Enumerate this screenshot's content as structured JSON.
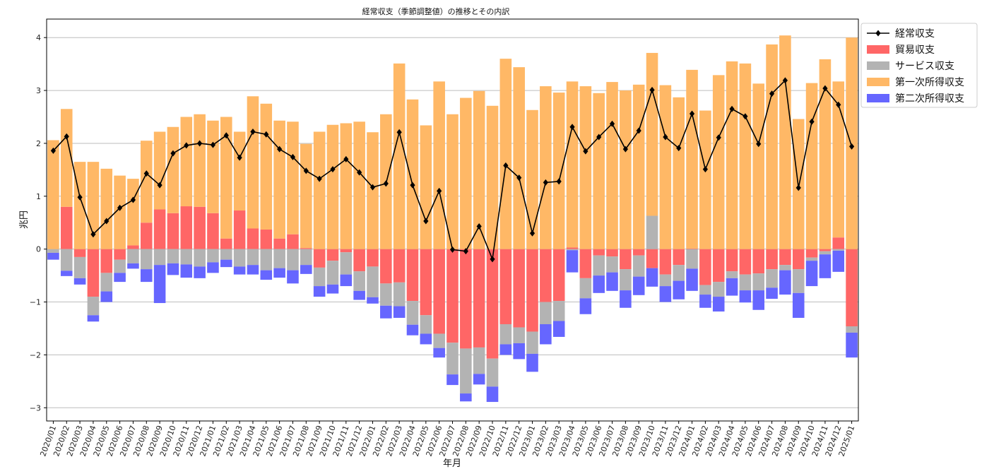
{
  "chart_data": {
    "type": "bar",
    "title": "経常収支（季節調整値）の推移とその内訳",
    "xlabel": "年月",
    "ylabel": "兆円",
    "ylim": [
      -3.25,
      4.35
    ],
    "yticks": [
      -3,
      -2,
      -1,
      0,
      1,
      2,
      3,
      4
    ],
    "ytick_labels": [
      "−3",
      "−2",
      "−1",
      "0",
      "1",
      "2",
      "3",
      "4"
    ],
    "grid": "horizontal",
    "legend_position": "top-right-outside",
    "stacked": true,
    "categories": [
      "2020/01",
      "2020/02",
      "2020/03",
      "2020/04",
      "2020/05",
      "2020/06",
      "2020/07",
      "2020/08",
      "2020/09",
      "2020/10",
      "2020/11",
      "2020/12",
      "2021/01",
      "2021/02",
      "2021/03",
      "2021/04",
      "2021/05",
      "2021/06",
      "2021/07",
      "2021/08",
      "2021/09",
      "2021/10",
      "2021/11",
      "2021/12",
      "2022/01",
      "2022/02",
      "2022/03",
      "2022/04",
      "2022/05",
      "2022/06",
      "2022/07",
      "2022/08",
      "2022/09",
      "2022/10",
      "2022/11",
      "2022/12",
      "2023/01",
      "2023/02",
      "2023/03",
      "2023/04",
      "2023/05",
      "2023/06",
      "2023/07",
      "2023/08",
      "2023/09",
      "2023/10",
      "2023/11",
      "2023/12",
      "2024/01",
      "2024/02",
      "2024/03",
      "2024/04",
      "2024/05",
      "2024/06",
      "2024/07",
      "2024/08",
      "2024/09",
      "2024/10",
      "2024/11",
      "2024/12",
      "2025/01"
    ],
    "series": [
      {
        "name": "貿易収支",
        "kind": "bar",
        "color": "#ff6666",
        "values": [
          0,
          0.8,
          -0.15,
          -0.9,
          -0.45,
          -0.2,
          0.07,
          0.5,
          0.75,
          0.68,
          0.81,
          0.8,
          0.68,
          0.2,
          0.73,
          0.39,
          0.37,
          0.2,
          0.28,
          0.02,
          -0.35,
          -0.22,
          -0.06,
          -0.42,
          -0.33,
          -0.65,
          -0.63,
          -0.98,
          -1.25,
          -1.6,
          -1.77,
          -1.88,
          -1.86,
          -2.07,
          -1.42,
          -1.48,
          -1.56,
          -1.0,
          -0.98,
          0.03,
          -0.55,
          -0.12,
          -0.14,
          -0.38,
          -0.12,
          -0.36,
          -0.48,
          -0.3,
          0.01,
          -0.68,
          -0.62,
          -0.42,
          -0.48,
          -0.46,
          -0.38,
          -0.3,
          -0.38,
          -0.16,
          -0.04,
          0.22,
          -1.46
        ]
      },
      {
        "name": "サービス収支",
        "kind": "bar",
        "color": "#b3b3b3",
        "values": [
          -0.07,
          -0.41,
          -0.4,
          -0.35,
          -0.35,
          -0.25,
          -0.27,
          -0.38,
          -0.3,
          -0.27,
          -0.29,
          -0.33,
          -0.25,
          -0.2,
          -0.33,
          -0.3,
          -0.4,
          -0.36,
          -0.4,
          -0.3,
          -0.35,
          -0.45,
          -0.42,
          -0.37,
          -0.58,
          -0.42,
          -0.45,
          -0.45,
          -0.35,
          -0.27,
          -0.6,
          -0.85,
          -0.5,
          -0.53,
          -0.38,
          -0.3,
          -0.42,
          -0.42,
          -0.38,
          -0.02,
          -0.38,
          -0.38,
          -0.3,
          -0.4,
          -0.4,
          0.63,
          -0.22,
          -0.3,
          -0.37,
          -0.18,
          -0.28,
          -0.13,
          -0.3,
          -0.32,
          -0.35,
          -0.1,
          -0.45,
          -0.06,
          -0.06,
          -0.03,
          -0.12
        ]
      },
      {
        "name": "第一次所得収支",
        "kind": "bar",
        "color": "#ffb866",
        "values": [
          2.06,
          1.85,
          1.65,
          1.65,
          1.52,
          1.39,
          1.26,
          1.55,
          1.47,
          1.63,
          1.69,
          1.75,
          1.75,
          2.3,
          1.49,
          2.5,
          2.38,
          2.23,
          2.13,
          1.97,
          2.22,
          2.35,
          2.38,
          2.41,
          2.21,
          2.55,
          3.51,
          2.83,
          2.34,
          3.17,
          2.55,
          2.86,
          2.99,
          2.71,
          3.6,
          3.44,
          2.63,
          3.08,
          2.96,
          3.14,
          3.08,
          2.95,
          3.16,
          3.0,
          3.11,
          3.08,
          3.1,
          2.87,
          3.38,
          2.62,
          3.29,
          3.55,
          3.51,
          3.13,
          3.87,
          4.04,
          2.46,
          3.14,
          3.59,
          2.95,
          4.0
        ]
      },
      {
        "name": "第二次所得収支",
        "kind": "bar",
        "color": "#6666ff",
        "values": [
          -0.13,
          -0.1,
          -0.12,
          -0.12,
          -0.2,
          -0.17,
          -0.1,
          -0.24,
          -0.72,
          -0.22,
          -0.25,
          -0.22,
          -0.2,
          -0.14,
          -0.15,
          -0.18,
          -0.18,
          -0.18,
          -0.25,
          -0.17,
          -0.2,
          -0.17,
          -0.22,
          -0.17,
          -0.12,
          -0.24,
          -0.22,
          -0.2,
          -0.2,
          -0.18,
          -0.2,
          -0.15,
          -0.2,
          -0.29,
          -0.2,
          -0.3,
          -0.34,
          -0.38,
          -0.3,
          -0.42,
          -0.3,
          -0.33,
          -0.35,
          -0.33,
          -0.35,
          -0.35,
          -0.3,
          -0.35,
          -0.42,
          -0.25,
          -0.28,
          -0.33,
          -0.23,
          -0.37,
          -0.21,
          -0.46,
          -0.47,
          -0.48,
          -0.45,
          -0.4,
          -0.47
        ]
      },
      {
        "name": "経常収支",
        "kind": "line",
        "color": "#000000",
        "marker": "diamond",
        "values": [
          1.86,
          2.13,
          0.98,
          0.28,
          0.53,
          0.78,
          0.93,
          1.43,
          1.21,
          1.81,
          1.96,
          2.0,
          1.97,
          2.15,
          1.73,
          2.22,
          2.17,
          1.89,
          1.74,
          1.48,
          1.33,
          1.51,
          1.7,
          1.45,
          1.17,
          1.24,
          2.21,
          1.21,
          0.53,
          1.1,
          -0.01,
          -0.04,
          0.43,
          -0.19,
          1.58,
          1.35,
          0.3,
          1.26,
          1.28,
          2.31,
          1.85,
          2.12,
          2.37,
          1.89,
          2.24,
          3.01,
          2.12,
          1.91,
          2.56,
          1.51,
          2.11,
          2.65,
          2.51,
          1.99,
          2.94,
          3.19,
          1.16,
          2.41,
          3.04,
          2.73,
          1.94
        ]
      }
    ]
  }
}
